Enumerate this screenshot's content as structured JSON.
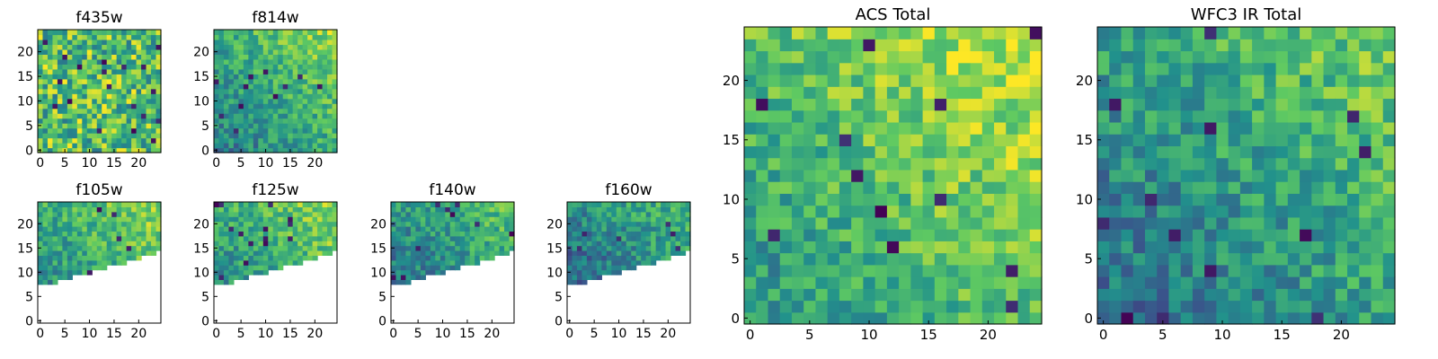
{
  "colormap": [
    "#440154",
    "#3b528b",
    "#21918c",
    "#5ec962",
    "#fde725"
  ],
  "chart_data": [
    {
      "type": "heatmap",
      "title": "f435w",
      "xticks": [
        "0",
        "5",
        "10",
        "15",
        "20"
      ],
      "yticks": [
        "0",
        "5",
        "10",
        "15",
        "20"
      ],
      "grid": false,
      "shape": [
        25,
        25
      ],
      "pattern": "noisy",
      "level": 0.7,
      "mask": "none"
    },
    {
      "type": "heatmap",
      "title": "f814w",
      "xticks": [
        "0",
        "5",
        "10",
        "15",
        "20"
      ],
      "yticks": [
        "0",
        "5",
        "10",
        "15",
        "20"
      ],
      "grid": false,
      "shape": [
        25,
        25
      ],
      "pattern": "gradient-bright-top-right",
      "level": 0.55,
      "mask": "none"
    },
    {
      "type": "heatmap",
      "title": "f105w",
      "xticks": [
        "0",
        "5",
        "10",
        "15",
        "20"
      ],
      "yticks": [
        "0",
        "5",
        "10",
        "15",
        "20"
      ],
      "grid": false,
      "shape": [
        25,
        25
      ],
      "pattern": "gradient-bright-top-right",
      "level": 0.55,
      "mask": "lower-right-empty"
    },
    {
      "type": "heatmap",
      "title": "f125w",
      "xticks": [
        "0",
        "5",
        "10",
        "15",
        "20"
      ],
      "yticks": [
        "0",
        "5",
        "10",
        "15",
        "20"
      ],
      "grid": false,
      "shape": [
        25,
        25
      ],
      "pattern": "gradient-bright-top-right",
      "level": 0.55,
      "mask": "lower-right-empty"
    },
    {
      "type": "heatmap",
      "title": "f140w",
      "xticks": [
        "0",
        "5",
        "10",
        "15",
        "20"
      ],
      "yticks": [
        "0",
        "5",
        "10",
        "15",
        "20"
      ],
      "grid": false,
      "shape": [
        25,
        25
      ],
      "pattern": "gradient-bright-top-right",
      "level": 0.45,
      "mask": "lower-right-empty"
    },
    {
      "type": "heatmap",
      "title": "f160w",
      "xticks": [
        "0",
        "5",
        "10",
        "15",
        "20"
      ],
      "yticks": [
        "0",
        "5",
        "10",
        "15",
        "20"
      ],
      "grid": false,
      "shape": [
        25,
        25
      ],
      "pattern": "gradient-bright-top-right",
      "level": 0.4,
      "mask": "lower-right-empty"
    },
    {
      "type": "heatmap",
      "title": "ACS Total",
      "xticks": [
        "0",
        "5",
        "10",
        "15",
        "20"
      ],
      "yticks": [
        "0",
        "5",
        "10",
        "15",
        "20"
      ],
      "grid": false,
      "shape": [
        25,
        25
      ],
      "pattern": "gradient-bright-top-right",
      "level": 0.65,
      "mask": "none"
    },
    {
      "type": "heatmap",
      "title": "WFC3 IR Total",
      "xticks": [
        "0",
        "5",
        "10",
        "15",
        "20"
      ],
      "yticks": [
        "0",
        "5",
        "10",
        "15",
        "20"
      ],
      "grid": false,
      "shape": [
        25,
        25
      ],
      "pattern": "gradient-bright-top-right",
      "level": 0.5,
      "mask": "none"
    }
  ]
}
